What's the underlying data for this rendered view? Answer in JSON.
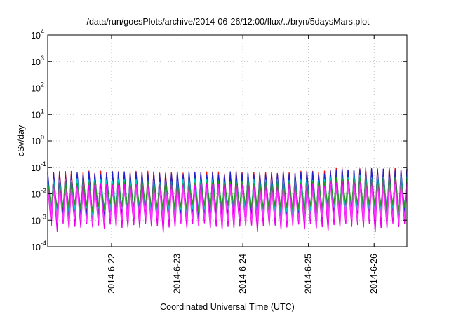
{
  "chart_data": {
    "type": "line",
    "title": "/data/run/goesPlots/archive/2014-06-26/12:00/flux/../bryn/5daysMars.plot",
    "xlabel": "Coordinated Universal Time (UTC)",
    "ylabel": "cSv/day",
    "yscale": "log",
    "ylim": [
      0.0001,
      10000
    ],
    "xlim": [
      "2014-06-21 00:40",
      "2014-06-26 12:00"
    ],
    "grid": true,
    "x_ticks": [
      "2014-6-22",
      "2014-6-23",
      "2014-6-24",
      "2014-6-25",
      "2014-6-26"
    ],
    "y_ticks": [
      {
        "base": "10",
        "exp": "-4"
      },
      {
        "base": "10",
        "exp": "-3"
      },
      {
        "base": "10",
        "exp": "-2"
      },
      {
        "base": "10",
        "exp": "-1"
      },
      {
        "base": "10",
        "exp": "0"
      },
      {
        "base": "10",
        "exp": "1"
      },
      {
        "base": "10",
        "exp": "2"
      },
      {
        "base": "10",
        "exp": "3"
      },
      {
        "base": "10",
        "exp": "4"
      }
    ],
    "pattern": {
      "cycles_per_day": 11.2,
      "approx_peak": 0.06,
      "approx_trough_minimum": 0.0005
    },
    "series": [
      {
        "color": "#ee1111",
        "peak_factor": 1.05,
        "trough_factor": 1.0
      },
      {
        "color": "#2222cc",
        "peak_factor": 1.0,
        "trough_factor": 0.95
      },
      {
        "color": "#00cccc",
        "peak_factor": 0.55,
        "trough_factor": 1.8
      },
      {
        "color": "#229922",
        "peak_factor": 0.45,
        "trough_factor": 2.4
      },
      {
        "color": "#ee00ee",
        "peak_factor": 0.35,
        "trough_factor": 0.45
      },
      {
        "color": "#ff33ff",
        "peak_factor": 0.25,
        "trough_factor": 0.8
      }
    ]
  }
}
